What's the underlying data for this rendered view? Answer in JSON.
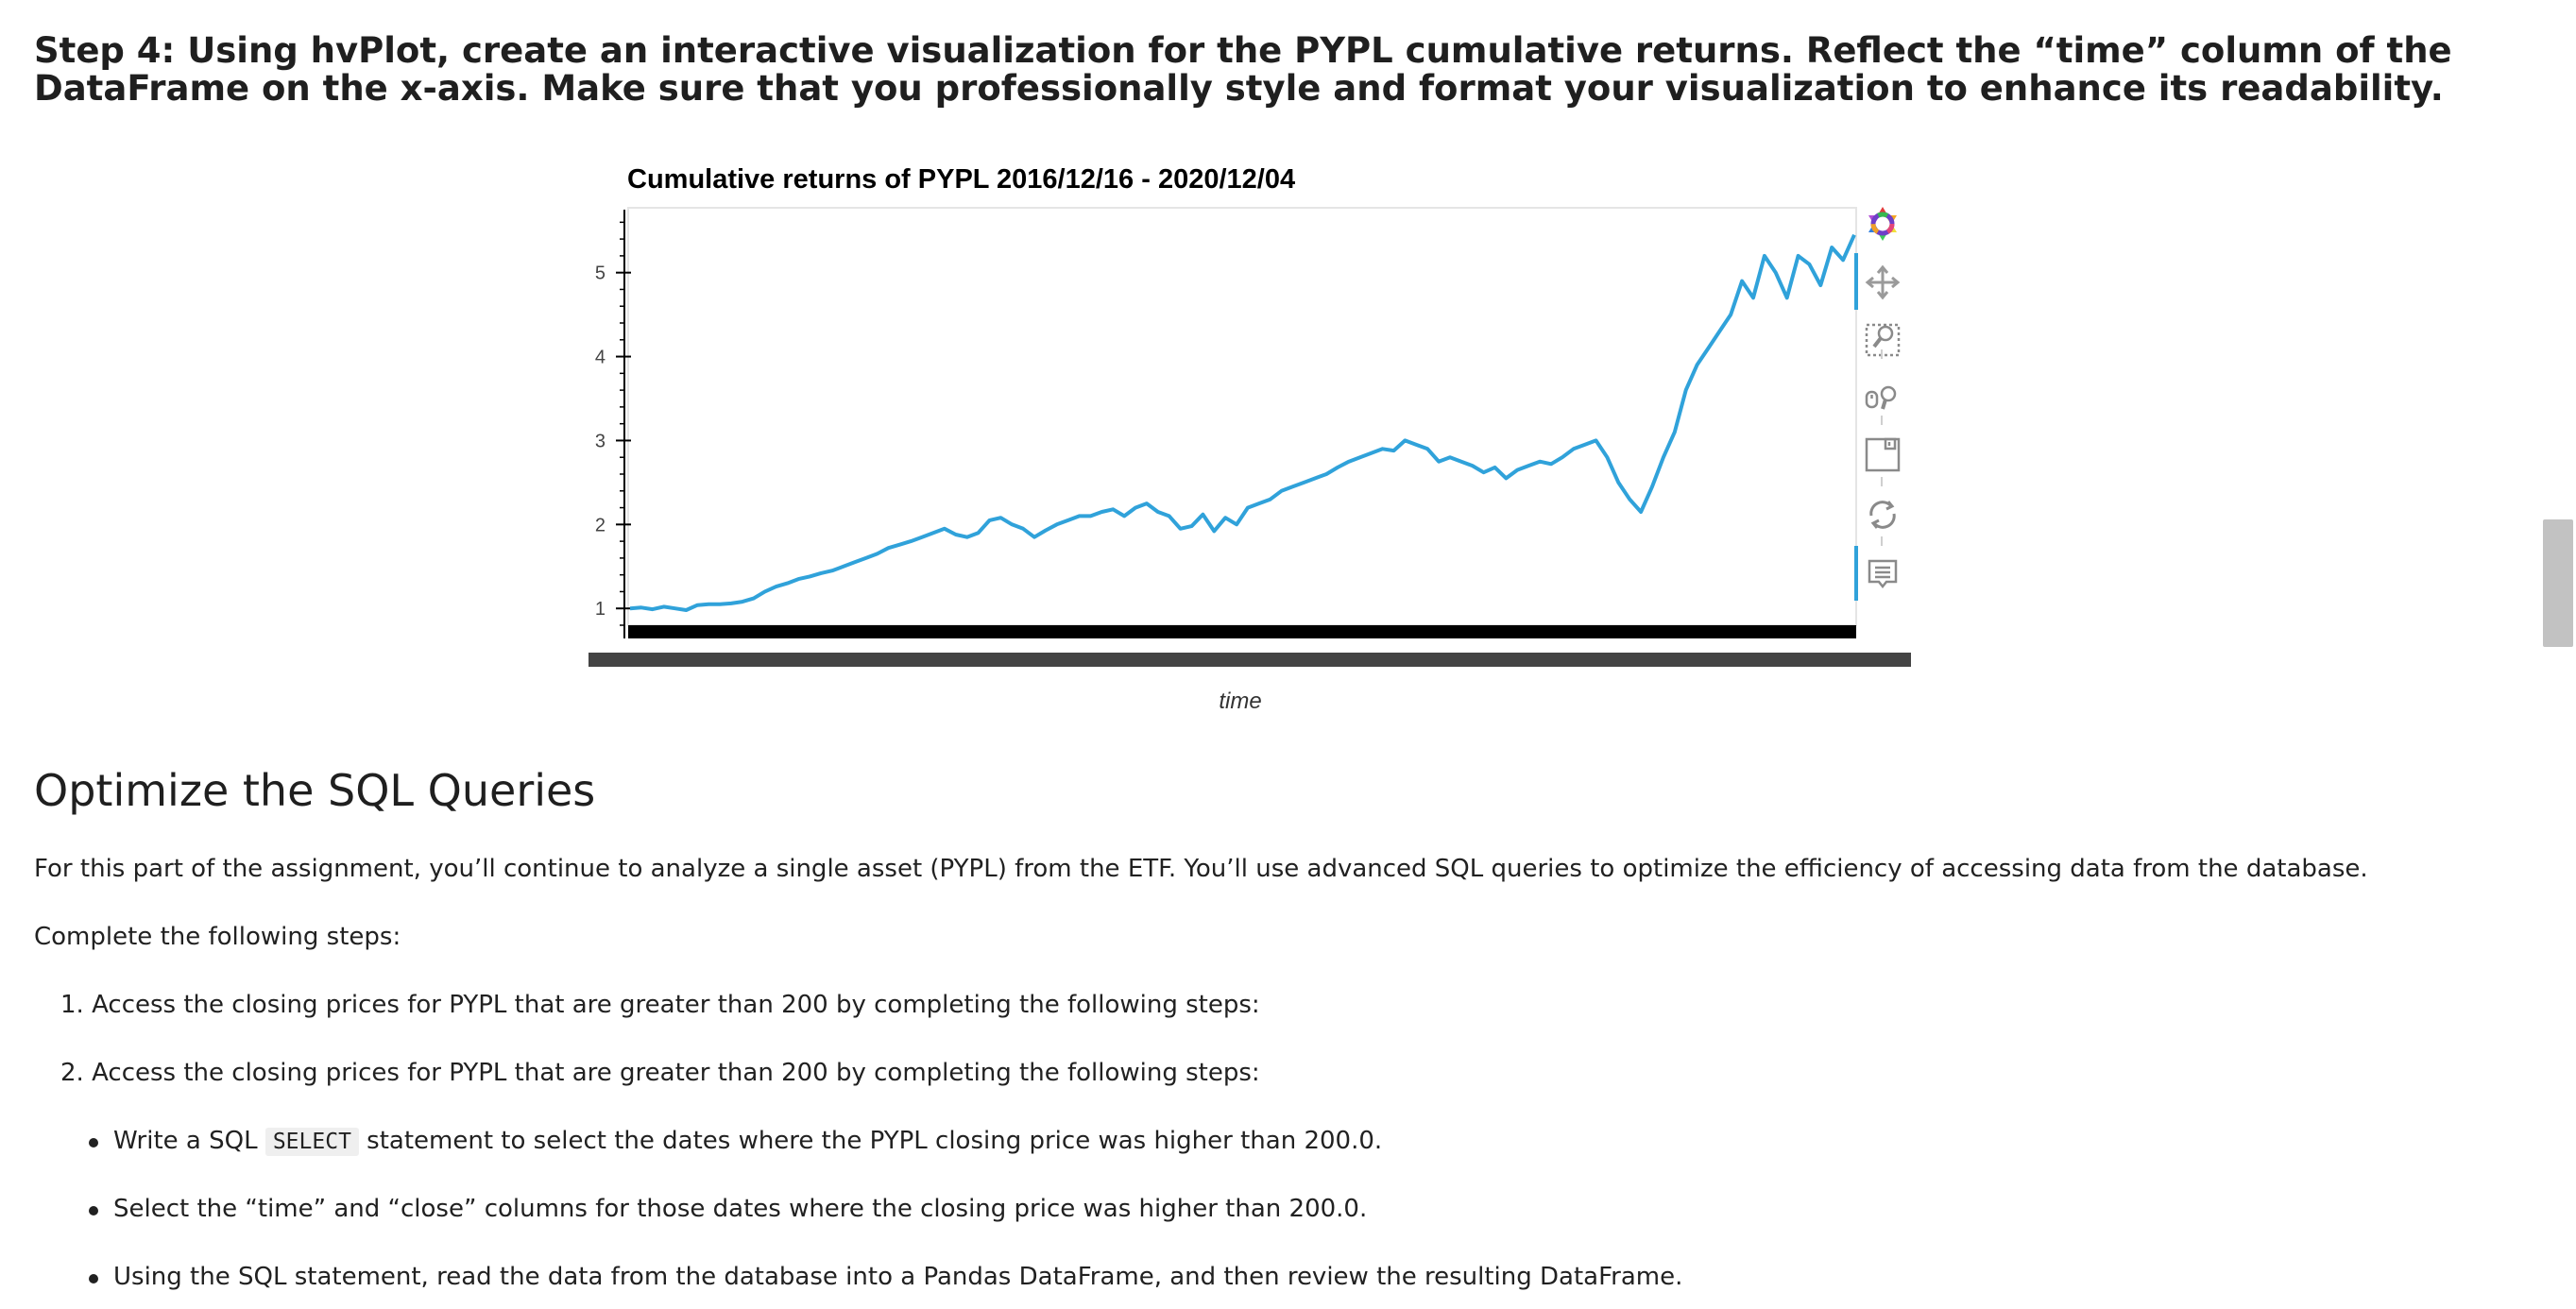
{
  "step_heading": "Step 4: Using hvPlot, create an interactive visualization for the PYPL cumulative returns. Reflect the “time” column of the DataFrame on the x-axis. Make sure that you professionally style and format your visualization to enhance its readability.",
  "chart_data": {
    "type": "line",
    "title": "Cumulative returns of PYPL 2016/12/16 - 2020/12/04",
    "xlabel": "time",
    "ylabel": "",
    "ylim": [
      0.8,
      5.75
    ],
    "yticks": [
      1,
      2,
      3,
      4,
      5
    ],
    "x_range": [
      "2016/12/16",
      "2020/12/04"
    ],
    "color": "#30a2da",
    "grid": false,
    "series": [
      {
        "values": [
          1.0,
          1.01,
          0.99,
          1.02,
          1.0,
          0.98,
          1.04,
          1.05,
          1.05,
          1.06,
          1.08,
          1.12,
          1.2,
          1.26,
          1.3,
          1.35,
          1.38,
          1.42,
          1.45,
          1.5,
          1.55,
          1.6,
          1.65,
          1.72,
          1.76,
          1.8,
          1.85,
          1.9,
          1.95,
          1.88,
          1.85,
          1.9,
          2.05,
          2.08,
          2.0,
          1.95,
          1.85,
          1.93,
          2.0,
          2.05,
          2.1,
          2.1,
          2.15,
          2.18,
          2.1,
          2.2,
          2.25,
          2.15,
          2.1,
          1.95,
          1.98,
          2.12,
          1.92,
          2.08,
          2.0,
          2.2,
          2.25,
          2.3,
          2.4,
          2.45,
          2.5,
          2.55,
          2.6,
          2.68,
          2.75,
          2.8,
          2.85,
          2.9,
          2.88,
          3.0,
          2.95,
          2.9,
          2.75,
          2.8,
          2.75,
          2.7,
          2.62,
          2.68,
          2.55,
          2.65,
          2.7,
          2.75,
          2.72,
          2.8,
          2.9,
          2.95,
          3.0,
          2.8,
          2.5,
          2.3,
          2.15,
          2.45,
          2.8,
          3.1,
          3.6,
          3.9,
          4.1,
          4.3,
          4.5,
          4.9,
          4.7,
          5.2,
          5.0,
          4.7,
          5.2,
          5.1,
          4.85,
          5.3,
          5.15,
          5.45
        ]
      }
    ]
  },
  "section_heading": "Optimize the SQL Queries",
  "intro_paragraph": "For this part of the assignment, you’ll continue to analyze a single asset (PYPL) from the ETF. You’ll use advanced SQL queries to optimize the efficiency of accessing data from the database.",
  "steps_intro": "Complete the following steps:",
  "numbered_items": [
    "1. Access the closing prices for PYPL that are greater than 200 by completing the following steps:",
    "2. Access the closing prices for PYPL that are greater than 200 by completing the following steps:"
  ],
  "bullet_items": {
    "b1_before": "Write a SQL ",
    "b1_code": "SELECT",
    "b1_after": " statement to select the dates where the PYPL closing price was higher than 200.0.",
    "b2": "Select the “time” and “close” columns for those dates where the closing price was higher than 200.0.",
    "b3": "Using the SQL statement, read the data from the database into a Pandas DataFrame, and then review the resulting DataFrame."
  },
  "toolbar_icons": [
    "bokeh-logo-icon",
    "pan-icon",
    "box-zoom-icon",
    "wheel-zoom-icon",
    "save-icon",
    "reset-icon",
    "hover-icon"
  ]
}
